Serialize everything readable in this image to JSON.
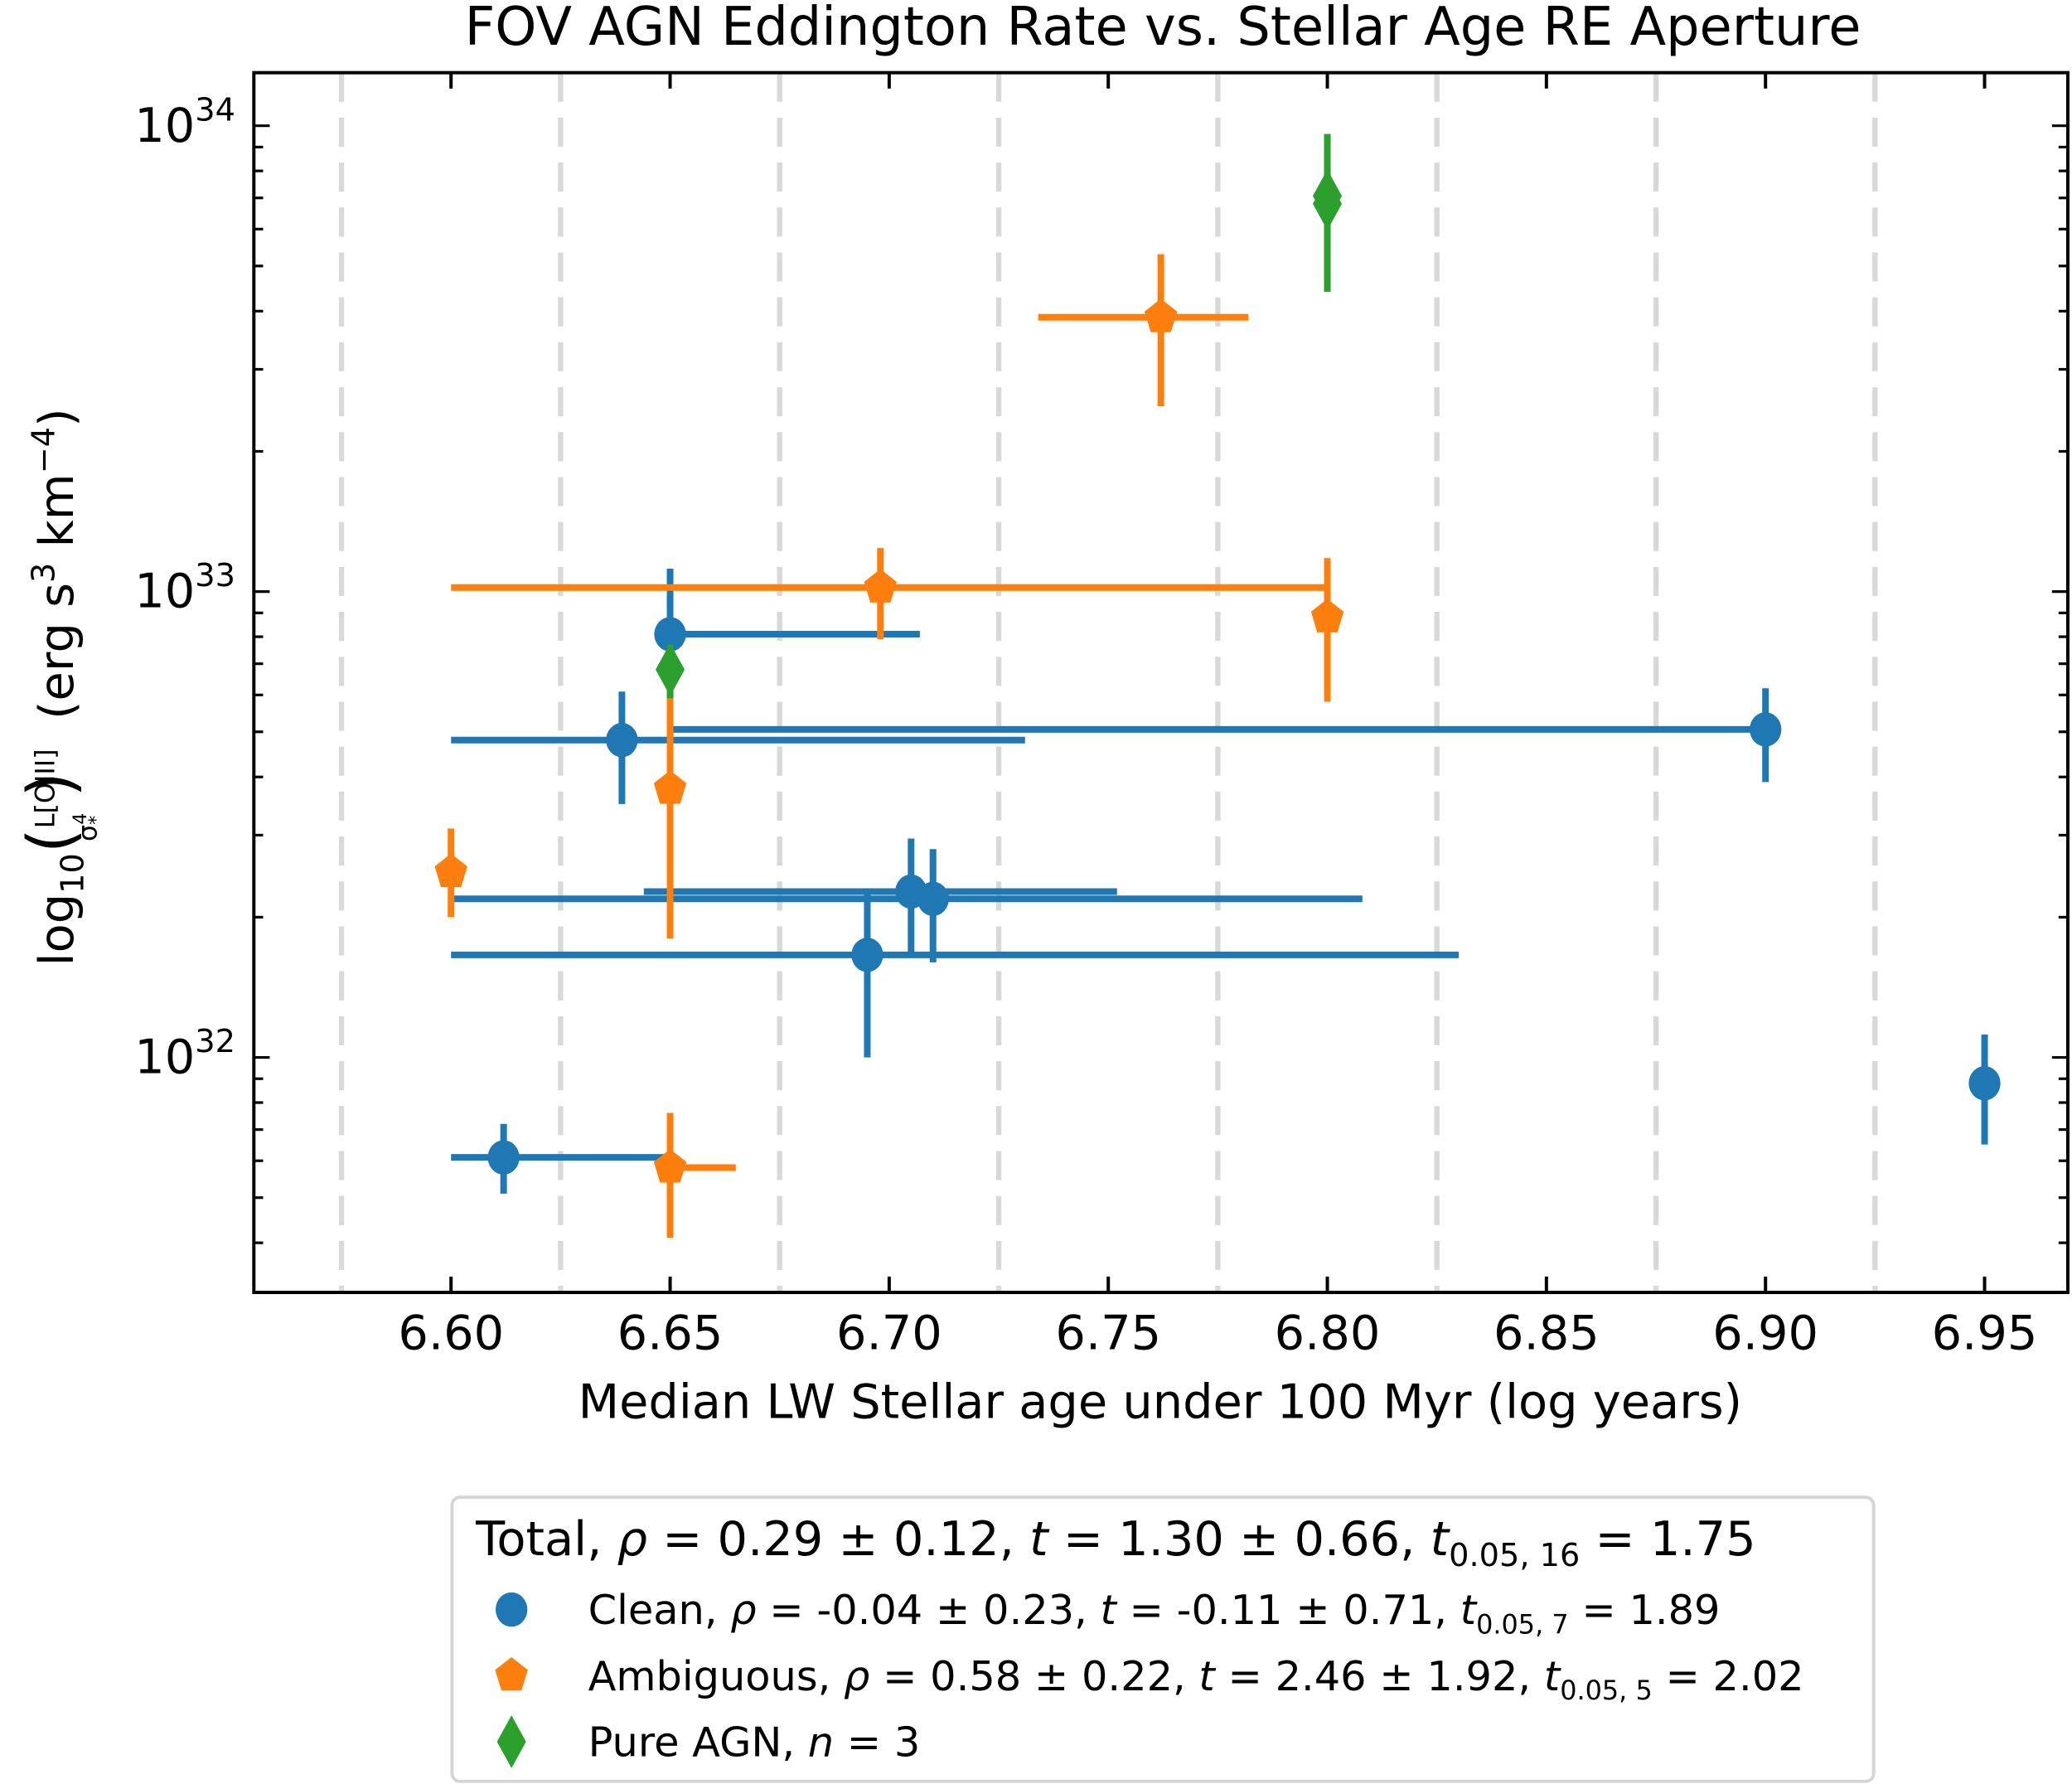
{
  "chart_data": {
    "type": "scatter",
    "title": "FOV AGN Eddington Rate vs. Stellar Age RE Aperture",
    "xlabel": "Median LW Stellar age under 100 Myr (log years)",
    "ylabel": {
      "main": "log",
      "sub": "10",
      "frac_num": "L[OIII]",
      "frac_den": "σ",
      "frac_den_sup": "4",
      "frac_den_sub": "*",
      "units_pre": "(erg s",
      "units_sup1": "3",
      "units_mid": " km",
      "units_sup2": "−4",
      "units_post": ")"
    },
    "xlim": [
      6.555,
      6.969
    ],
    "ylim": [
      3.13e+31,
      1.3e+34
    ],
    "yscale": "log",
    "x_ticks": [
      "6.60",
      "6.65",
      "6.70",
      "6.75",
      "6.80",
      "6.85",
      "6.90",
      "6.95"
    ],
    "y_ticks": [
      {
        "base": "10",
        "exp": "32",
        "value": 1e+32
      },
      {
        "base": "10",
        "exp": "33",
        "value": 1e+33
      },
      {
        "base": "10",
        "exp": "34",
        "value": 1e+34
      }
    ],
    "vlines": [
      6.575,
      6.625,
      6.675,
      6.725,
      6.775,
      6.825,
      6.875,
      6.925
    ],
    "vline_color": "#d9d9d9",
    "series": [
      {
        "name": "Clean",
        "color": "#1f77b4",
        "marker": "circle",
        "points": [
          {
            "x": 6.612,
            "y": 6.1e+31,
            "xlo": 6.6,
            "xhi": 6.65,
            "ylo": 5.1e+31,
            "yhi": 7.2e+31
          },
          {
            "x": 6.65,
            "y": 8.1e+32,
            "xlo": 6.65,
            "xhi": 6.707,
            "ylo": 6e+32,
            "yhi": 1.12e+33
          },
          {
            "x": 6.639,
            "y": 4.8e+32,
            "xlo": 6.6,
            "xhi": 6.731,
            "ylo": 3.5e+32,
            "yhi": 6.1e+32
          },
          {
            "x": 6.9,
            "y": 5.06e+32,
            "xlo": 6.65,
            "xhi": 6.9,
            "ylo": 3.9e+32,
            "yhi": 6.2e+32
          },
          {
            "x": 6.705,
            "y": 2.27e+32,
            "xlo": 6.644,
            "xhi": 6.752,
            "ylo": 1.65e+32,
            "yhi": 2.95e+32
          },
          {
            "x": 6.71,
            "y": 2.19e+32,
            "xlo": 6.6,
            "xhi": 6.808,
            "ylo": 1.6e+32,
            "yhi": 2.8e+32
          },
          {
            "x": 6.695,
            "y": 1.66e+32,
            "xlo": 6.6,
            "xhi": 6.83,
            "ylo": 1e+32,
            "yhi": 2.3e+32
          },
          {
            "x": 6.95,
            "y": 8.8e+31,
            "xlo": 6.95,
            "xhi": 6.95,
            "ylo": 6.5e+31,
            "yhi": 1.12e+32
          }
        ]
      },
      {
        "name": "Ambiguous",
        "color": "#ff7f0e",
        "marker": "pentagon",
        "points": [
          {
            "x": 6.762,
            "y": 3.88e+33,
            "xlo": 6.734,
            "xhi": 6.782,
            "ylo": 2.5e+33,
            "yhi": 5.3e+33
          },
          {
            "x": 6.698,
            "y": 1.02e+33,
            "xlo": 6.6,
            "xhi": 6.8,
            "ylo": 7.9e+32,
            "yhi": 1.24e+33
          },
          {
            "x": 6.8,
            "y": 8.8e+32,
            "xlo": 6.8,
            "xhi": 6.8,
            "ylo": 5.8e+32,
            "yhi": 1.18e+33
          },
          {
            "x": 6.65,
            "y": 3.77e+32,
            "xlo": 6.65,
            "xhi": 6.65,
            "ylo": 1.8e+32,
            "yhi": 6.1e+32
          },
          {
            "x": 6.6,
            "y": 2.5e+32,
            "xlo": 6.6,
            "xhi": 6.6,
            "ylo": 2e+32,
            "yhi": 3.1e+32
          },
          {
            "x": 6.65,
            "y": 5.8e+31,
            "xlo": 6.65,
            "xhi": 6.665,
            "ylo": 4.1e+31,
            "yhi": 7.6e+31
          }
        ]
      },
      {
        "name": "Pure AGN",
        "color": "#2ca02c",
        "marker": "diamond",
        "points": [
          {
            "x": 6.8,
            "y": 7.07e+33,
            "xlo": 6.8,
            "xhi": 6.8,
            "ylo": 4.4e+33,
            "yhi": 9.6e+33
          },
          {
            "x": 6.8,
            "y": 6.8e+33,
            "xlo": 6.8,
            "xhi": 6.8,
            "ylo": 4.6e+33,
            "yhi": 9e+33
          },
          {
            "x": 6.65,
            "y": 6.8e+32,
            "xlo": 6.65,
            "xhi": 6.65,
            "ylo": 5.9e+32,
            "yhi": 7.7e+32
          }
        ]
      }
    ],
    "legend": {
      "placement": "below",
      "total": {
        "a": "Total, ",
        "rho": "ρ",
        "b": " = 0.29 ± 0.12, ",
        "t": "t",
        "c": " = 1.30 ± 0.66, ",
        "t2": "t",
        "sub": "0.05, 16",
        "d": " = 1.75"
      },
      "entries": [
        {
          "a": "Clean, ",
          "rho": "ρ",
          "b": " = -0.04 ± 0.23, ",
          "t": "t",
          "c": " = -0.11 ± 0.71, ",
          "t2": "t",
          "sub": "0.05, 7",
          "d": " = 1.89"
        },
        {
          "a": "Ambiguous, ",
          "rho": "ρ",
          "b": " = 0.58 ± 0.22, ",
          "t": "t",
          "c": " = 2.46 ± 1.92, ",
          "t2": "t",
          "sub": "0.05, 5",
          "d": " = 2.02"
        },
        {
          "a": "Pure AGN, ",
          "rho": "n",
          "b": " = 3",
          "t": "",
          "c": "",
          "t2": "",
          "sub": "",
          "d": ""
        }
      ]
    }
  }
}
